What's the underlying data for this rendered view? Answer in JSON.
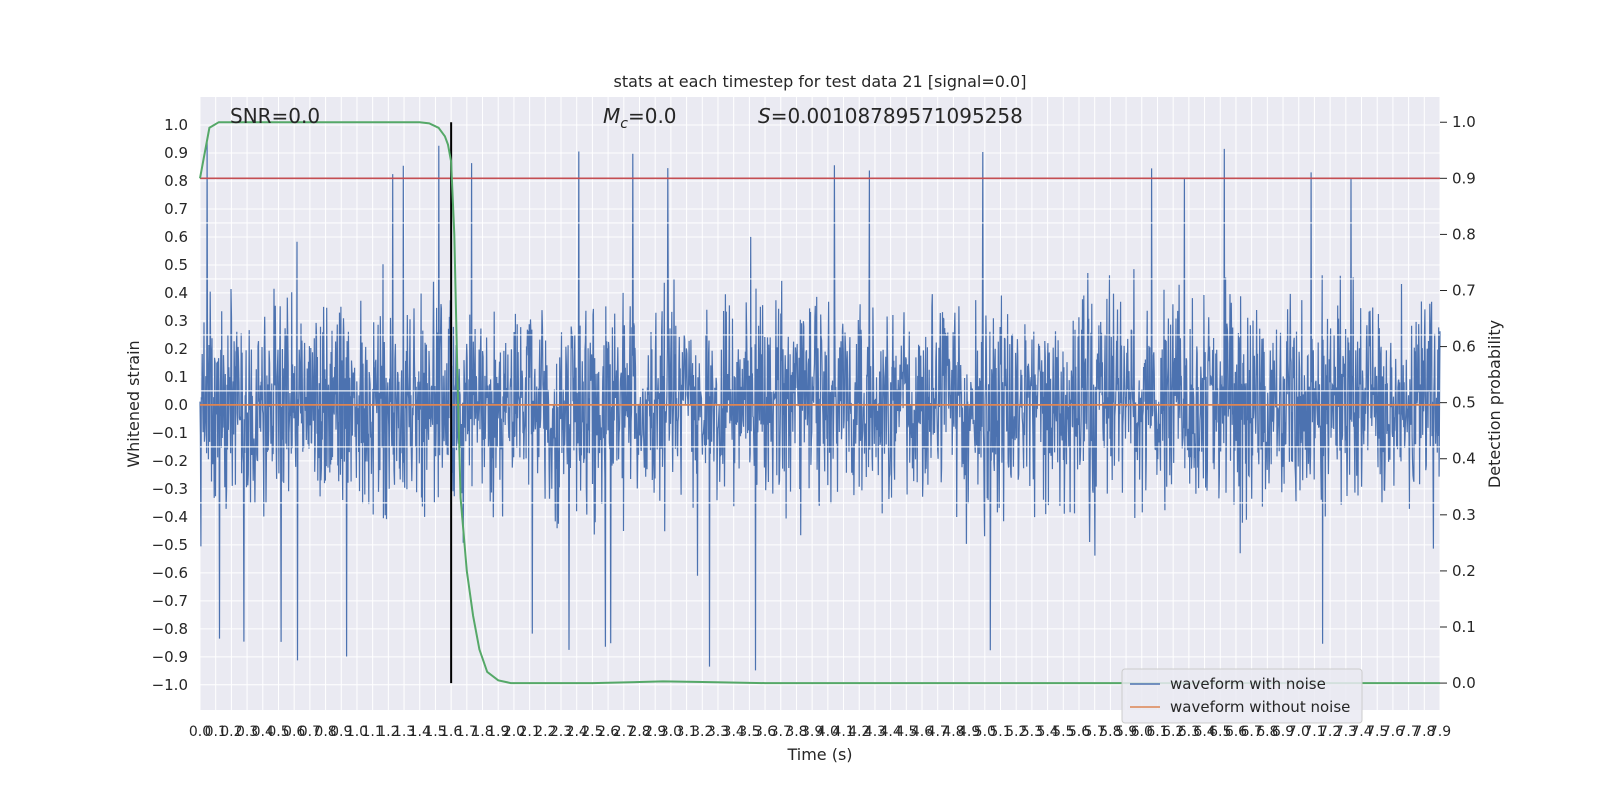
{
  "chart_data": {
    "type": "line",
    "title": "stats at each timestep for test data 21 [signal=0.0]",
    "xlabel": "Time (s)",
    "ylabel_left": "Whitened strain",
    "ylabel_right": "Detection probability",
    "xlim": [
      0.0,
      7.9
    ],
    "ylim_left": [
      -1.09,
      1.1
    ],
    "ylim_right": [
      -0.048,
      1.045
    ],
    "x_ticks": [
      "0.0",
      "0.1",
      "0.2",
      "0.3",
      "0.4",
      "0.5",
      "0.6",
      "0.7",
      "0.8",
      "0.9",
      "1.0",
      "1.1",
      "1.2",
      "1.3",
      "1.4",
      "1.5",
      "1.6",
      "1.7",
      "1.8",
      "1.9",
      "2.0",
      "2.1",
      "2.2",
      "2.3",
      "2.4",
      "2.5",
      "2.6",
      "2.7",
      "2.8",
      "2.9",
      "3.0",
      "3.1",
      "3.2",
      "3.3",
      "3.4",
      "3.5",
      "3.6",
      "3.7",
      "3.8",
      "3.9",
      "4.0",
      "4.1",
      "4.2",
      "4.3",
      "4.4",
      "4.5",
      "4.6",
      "4.7",
      "4.8",
      "4.9",
      "5.0",
      "5.1",
      "5.2",
      "5.3",
      "5.4",
      "5.5",
      "5.6",
      "5.7",
      "5.8",
      "5.9",
      "6.0",
      "6.1",
      "6.2",
      "6.3",
      "6.4",
      "6.5",
      "6.6",
      "6.7",
      "6.8",
      "6.9",
      "7.0",
      "7.1",
      "7.2",
      "7.3",
      "7.4",
      "7.5",
      "7.6",
      "7.7",
      "7.8",
      "7.9"
    ],
    "y_ticks_left": [
      "1.0",
      "0.9",
      "0.8",
      "0.7",
      "0.6",
      "0.5",
      "0.4",
      "0.3",
      "0.2",
      "0.1",
      "0.0",
      "−0.1",
      "−0.2",
      "−0.3",
      "−0.4",
      "−0.5",
      "−0.6",
      "−0.7",
      "−0.8",
      "−0.9",
      "−1.0"
    ],
    "y_ticks_right": [
      "1.0",
      "0.9",
      "0.8",
      "0.7",
      "0.6",
      "0.5",
      "0.4",
      "0.3",
      "0.2",
      "0.1",
      "0.0"
    ],
    "annotations": {
      "snr": "SNR=0.0",
      "mc_symbol": "M",
      "mc_subscript": "c",
      "mc_value": "=0.0",
      "s_symbol": "S",
      "s_value": "=0.00108789571095258"
    },
    "series": [
      {
        "name": "waveform with noise",
        "color": "#4c72b0",
        "kind": "noise",
        "typical_amplitude": 0.45,
        "peak_amplitude": 0.95
      },
      {
        "name": "waveform without noise",
        "color": "#dd8452",
        "kind": "constant",
        "value": 0.0
      },
      {
        "kind": "probability",
        "color": "#55a868",
        "x": [
          0.0,
          0.06,
          0.12,
          0.2,
          0.4,
          0.8,
          1.2,
          1.4,
          1.46,
          1.52,
          1.56,
          1.58,
          1.6,
          1.62,
          1.64,
          1.66,
          1.7,
          1.74,
          1.78,
          1.83,
          1.9,
          1.98,
          2.1,
          2.5,
          2.8,
          2.95,
          3.2,
          3.6,
          4.5,
          5.5,
          6.5,
          7.2,
          7.9
        ],
        "values": [
          0.9,
          0.99,
          1.0,
          1.0,
          1.0,
          1.0,
          1.0,
          1.0,
          0.998,
          0.99,
          0.975,
          0.96,
          0.93,
          0.8,
          0.55,
          0.33,
          0.2,
          0.12,
          0.06,
          0.02,
          0.005,
          0.0,
          0.0,
          0.0,
          0.002,
          0.003,
          0.002,
          0.0,
          0.0,
          0.0,
          0.0,
          0.0,
          0.0
        ]
      }
    ],
    "threshold_line": {
      "value": 0.9,
      "axis": "right",
      "color": "#c44e52"
    },
    "detection_marker": {
      "x": 1.6,
      "color": "#000000"
    },
    "legend_position": "lower right",
    "grid": true
  }
}
